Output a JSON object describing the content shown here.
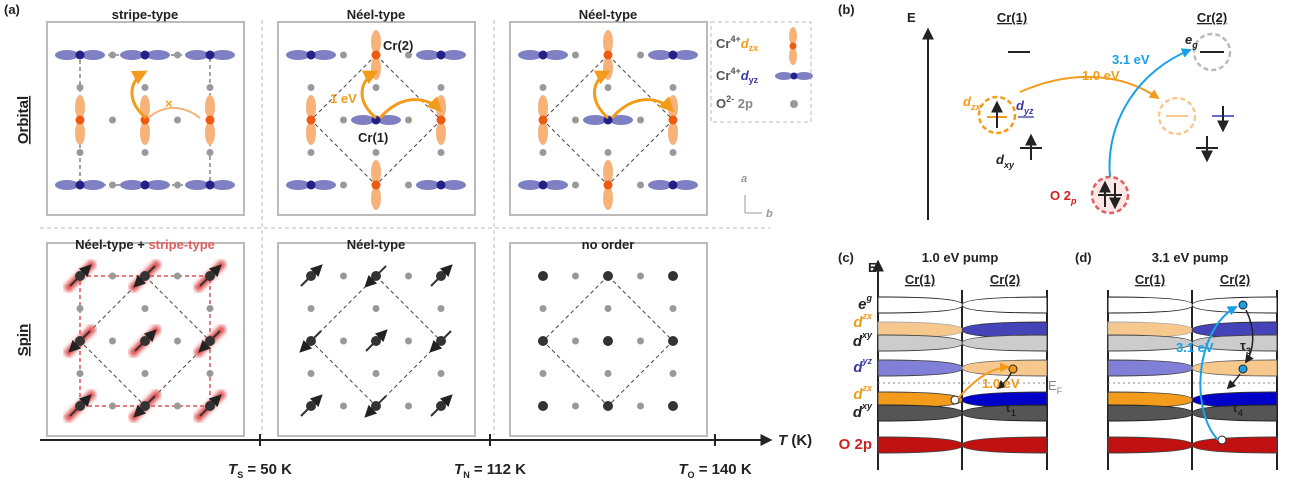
{
  "panel_a": {
    "label": "(a)",
    "row_labels": [
      "Orbital",
      "Spin"
    ],
    "orbital_titles": [
      "stripe-type",
      "Néel-type",
      "Néel-type"
    ],
    "spin_titles": [
      {
        "first": "Néel-type + ",
        "second": "stripe-type"
      },
      "Néel-type",
      "no order"
    ],
    "legend": [
      {
        "main": "Cr",
        "sup": "4+",
        "orb": "d",
        "sub": "zx"
      },
      {
        "main": "Cr",
        "sup": "4+",
        "orb": "d",
        "sub": "yz"
      },
      {
        "main": "O",
        "sup": "2-",
        "orb": " 2p"
      }
    ],
    "annotations": {
      "cr2": "Cr(2)",
      "cr1": "Cr(1)",
      "hop": "1 eV",
      "cross": "×",
      "axis_a": "a",
      "axis_b": "b"
    },
    "axis": {
      "label": {
        "main": "T",
        "rest": " (K)"
      },
      "ticks": [
        {
          "main": "T",
          "sub": "S",
          "rest": " = 50 K"
        },
        {
          "main": "T",
          "sub": "N",
          "rest": " = 112 K"
        },
        {
          "main": "T",
          "sub": "O",
          "rest": " = 140 K"
        }
      ]
    }
  },
  "panel_b": {
    "label": "(b)",
    "energy": "E",
    "sites": [
      "Cr(1)",
      "Cr(2)"
    ],
    "transitions": [
      "1.0 eV",
      "3.1 eV"
    ],
    "levels": {
      "eg": {
        "main": "e",
        "sub": "g"
      },
      "dzx": {
        "main": "d",
        "sub": "zx"
      },
      "dyz": {
        "main": "d",
        "sub": "yz"
      },
      "dxy": {
        "main": "d",
        "sub": "xy"
      },
      "o2p": {
        "main": "O 2",
        "sub": "p"
      }
    }
  },
  "panel_c": {
    "label": "(c)",
    "title": "1.0 eV pump",
    "energy": "E",
    "sites": [
      "Cr(1)",
      "Cr(2)"
    ],
    "levels": [
      {
        "main": "e",
        "sub": "g"
      },
      {
        "main": "d",
        "sub": "zx"
      },
      {
        "main": "d",
        "sub": "xy"
      },
      {
        "main": "d",
        "sub": "yz"
      },
      {
        "main": "d",
        "sub": "zx"
      },
      {
        "main": "d",
        "sub": "xy"
      },
      {
        "main": "O 2p"
      }
    ],
    "transition": "1.0 eV",
    "tau": {
      "main": "τ",
      "sub": "1"
    },
    "fermi": {
      "main": "E",
      "sub": "F"
    }
  },
  "panel_d": {
    "label": "(d)",
    "title": "3.1 eV pump",
    "sites": [
      "Cr(1)",
      "Cr(2)"
    ],
    "transition": "3.1 eV",
    "taus": [
      {
        "main": "τ",
        "sub": "3"
      },
      {
        "main": "τ",
        "sub": "4"
      }
    ]
  }
}
